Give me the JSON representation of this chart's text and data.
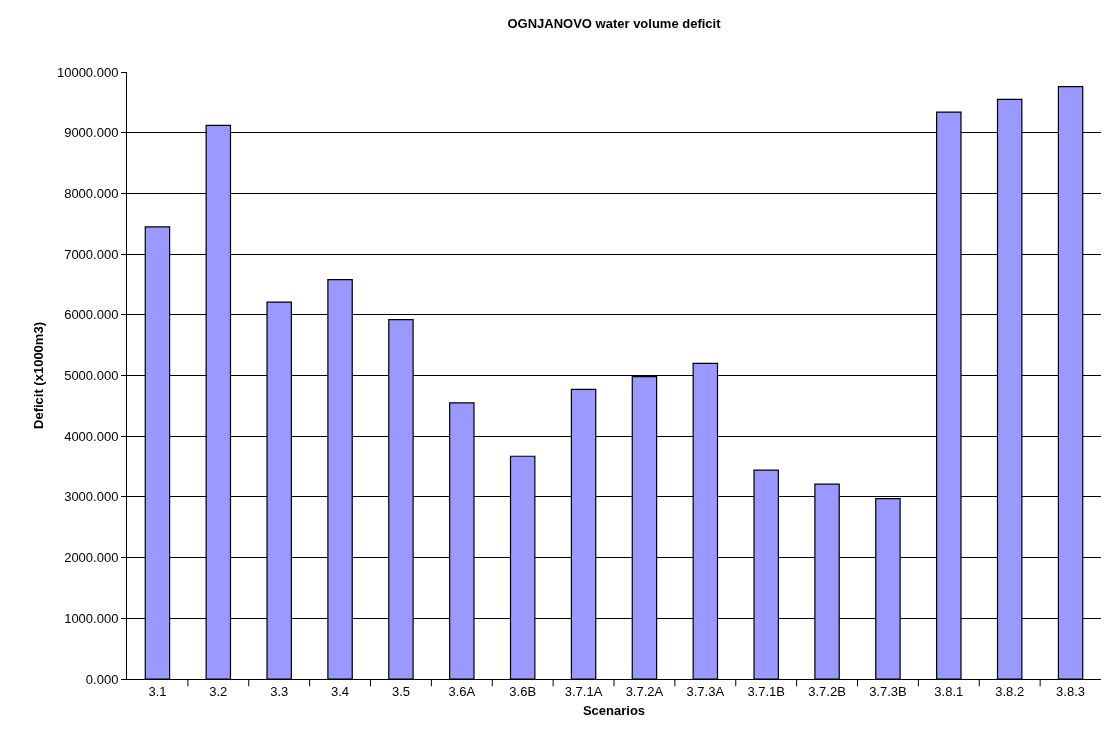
{
  "chart_data": {
    "type": "bar",
    "title": "OGNJANOVO water volume deficit",
    "xlabel": "Scenarios",
    "ylabel": "Deficit (x1000m3)",
    "categories": [
      "3.1",
      "3.2",
      "3.3",
      "3.4",
      "3.5",
      "3.6A",
      "3.6B",
      "3.7.1A",
      "3.7.2A",
      "3.7.3A",
      "3.7.1B",
      "3.7.2B",
      "3.7.3B",
      "3.8.1",
      "3.8.2",
      "3.8.3"
    ],
    "values": [
      7450,
      9120,
      6210,
      6580,
      5920,
      4550,
      3670,
      4770,
      4980,
      5200,
      3440,
      3210,
      2970,
      9340,
      9550,
      9760
    ],
    "color": "#9999ff",
    "ylim": [
      0,
      10000
    ],
    "yticks": [
      {
        "value": 0,
        "label": "0.000"
      },
      {
        "value": 1000,
        "label": "1000.000"
      },
      {
        "value": 2000,
        "label": "2000.000"
      },
      {
        "value": 3000,
        "label": "3000.000"
      },
      {
        "value": 4000,
        "label": "4000.000"
      },
      {
        "value": 5000,
        "label": "5000.000"
      },
      {
        "value": 6000,
        "label": "6000.000"
      },
      {
        "value": 7000,
        "label": "7000.000"
      },
      {
        "value": 8000,
        "label": "8000.000"
      },
      {
        "value": 9000,
        "label": "9000.000"
      },
      {
        "value": 10000,
        "label": "10000.000"
      }
    ],
    "grid": "y"
  }
}
